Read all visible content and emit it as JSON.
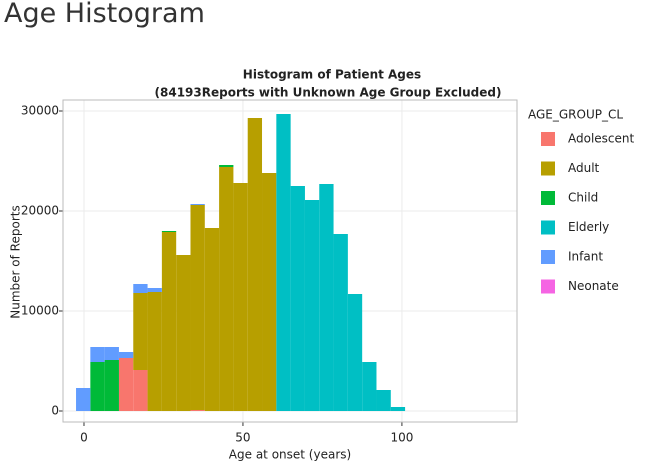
{
  "header": {
    "title": "Age Histogram"
  },
  "chart_data": {
    "type": "histogram",
    "title": "Histogram of Patient Ages",
    "subtitle": "(84193Reports with Unknown Age Group Excluded)",
    "x_label": "Age at onset (years)",
    "y_label": "Number of Reports",
    "legend_title": "AGE_GROUP_CL",
    "bins": [
      -2.5,
      2,
      6.5,
      11,
      15.5,
      20,
      24.5,
      29,
      33.5,
      38,
      42.5,
      47,
      51.5,
      56,
      60.5,
      65,
      69.5,
      74,
      78.5,
      83,
      87.5,
      92,
      96.5,
      101
    ],
    "stacked": true,
    "series": [
      {
        "name": "Adolescent",
        "color": "#f8766d",
        "values": [
          0,
          0,
          0,
          5300,
          4100,
          0,
          0,
          0,
          100,
          0,
          0,
          0,
          0,
          0,
          0,
          0,
          0,
          0,
          0,
          0,
          0,
          0,
          0
        ]
      },
      {
        "name": "Adult",
        "color": "#b79f00",
        "values": [
          0,
          0,
          0,
          0,
          7700,
          11900,
          17900,
          15600,
          20500,
          18300,
          24400,
          22800,
          29300,
          23800,
          0,
          0,
          0,
          0,
          0,
          0,
          0,
          0,
          0
        ]
      },
      {
        "name": "Child",
        "color": "#00ba38",
        "values": [
          0,
          4900,
          5100,
          0,
          0,
          0,
          100,
          0,
          0,
          0,
          200,
          0,
          0,
          0,
          0,
          0,
          0,
          0,
          0,
          0,
          0,
          0,
          0
        ]
      },
      {
        "name": "Elderly",
        "color": "#00bfc4",
        "values": [
          0,
          0,
          0,
          0,
          0,
          0,
          0,
          0,
          0,
          0,
          0,
          0,
          0,
          0,
          29700,
          22500,
          21100,
          22700,
          17700,
          11700,
          4900,
          2100,
          400
        ]
      },
      {
        "name": "Infant",
        "color": "#619cff",
        "values": [
          2300,
          1500,
          1300,
          600,
          900,
          400,
          0,
          0,
          100,
          0,
          0,
          0,
          0,
          0,
          0,
          0,
          0,
          0,
          0,
          0,
          0,
          0,
          0
        ]
      },
      {
        "name": "Neonate",
        "color": "#f564e3",
        "values": [
          0,
          0,
          0,
          0,
          0,
          0,
          0,
          0,
          0,
          0,
          0,
          0,
          0,
          0,
          0,
          0,
          0,
          0,
          0,
          0,
          0,
          0,
          0
        ]
      }
    ],
    "xlim": [
      -6.6,
      136.2
    ],
    "ylim": [
      -1100,
      31100
    ],
    "xticks": [
      0,
      50,
      100
    ],
    "yticks": [
      0,
      10000,
      20000,
      30000
    ],
    "grid": true,
    "legend": "right"
  }
}
